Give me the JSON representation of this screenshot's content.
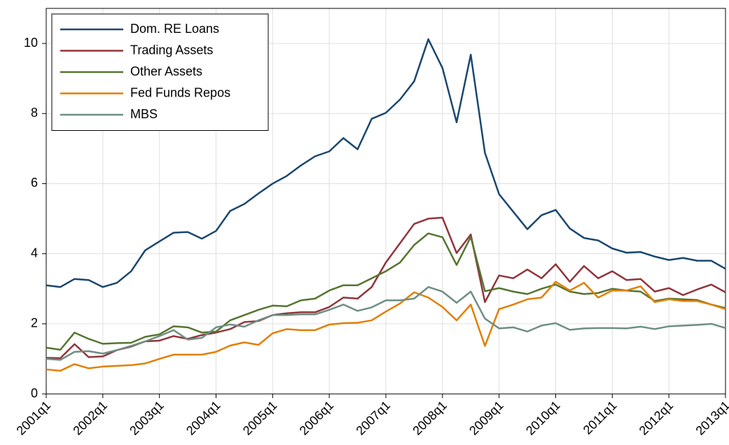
{
  "chart_data": {
    "type": "line",
    "categories": [
      "2001q1",
      null,
      null,
      null,
      "2002q1",
      null,
      null,
      null,
      "2003q1",
      null,
      null,
      null,
      "2004q1",
      null,
      null,
      null,
      "2005q1",
      null,
      null,
      null,
      "2006q1",
      null,
      null,
      null,
      "2007q1",
      null,
      null,
      null,
      "2008q1",
      null,
      null,
      null,
      "2009q1",
      null,
      null,
      null,
      "2010q1",
      null,
      null,
      null,
      "2011q1",
      null,
      null,
      null,
      "2012q1",
      null,
      null,
      null,
      "2013q1"
    ],
    "ylim": [
      0,
      11
    ],
    "yticks": [
      0,
      2,
      4,
      6,
      8,
      10
    ],
    "grid": true,
    "legend": "top-left",
    "series": [
      {
        "name": "Dom. RE Loans",
        "color": "#1a476f",
        "values": [
          3.1,
          3.05,
          3.28,
          3.25,
          3.05,
          3.17,
          3.5,
          4.1,
          4.35,
          4.6,
          4.62,
          4.43,
          4.65,
          5.22,
          5.42,
          5.72,
          6.0,
          6.22,
          6.52,
          6.78,
          6.92,
          7.3,
          6.98,
          7.85,
          8.02,
          8.4,
          8.92,
          10.12,
          9.3,
          7.75,
          9.68,
          6.88,
          5.7,
          5.2,
          4.7,
          5.1,
          5.25,
          4.72,
          4.45,
          4.38,
          4.15,
          4.03,
          4.05,
          3.92,
          3.82,
          3.88,
          3.8,
          3.8,
          3.57
        ]
      },
      {
        "name": "Trading Assets",
        "color": "#90353b",
        "values": [
          1.03,
          1.02,
          1.42,
          1.05,
          1.07,
          1.25,
          1.35,
          1.5,
          1.52,
          1.65,
          1.57,
          1.68,
          1.75,
          1.85,
          2.05,
          2.08,
          2.25,
          2.3,
          2.33,
          2.33,
          2.48,
          2.75,
          2.72,
          3.05,
          3.75,
          4.3,
          4.85,
          5.0,
          5.03,
          4.02,
          4.55,
          2.62,
          3.38,
          3.3,
          3.55,
          3.3,
          3.7,
          3.2,
          3.65,
          3.3,
          3.5,
          3.25,
          3.28,
          2.92,
          3.02,
          2.82,
          2.98,
          3.12,
          2.9
        ]
      },
      {
        "name": "Other Assets",
        "color": "#55752f",
        "values": [
          1.32,
          1.26,
          1.75,
          1.57,
          1.43,
          1.45,
          1.46,
          1.63,
          1.7,
          1.93,
          1.9,
          1.75,
          1.78,
          2.1,
          2.25,
          2.4,
          2.52,
          2.5,
          2.67,
          2.72,
          2.95,
          3.1,
          3.1,
          3.3,
          3.5,
          3.75,
          4.25,
          4.58,
          4.47,
          3.68,
          4.48,
          2.93,
          3.02,
          2.92,
          2.85,
          3.0,
          3.12,
          2.92,
          2.85,
          2.88,
          3.0,
          2.95,
          2.92,
          2.65,
          2.72,
          2.7,
          2.68,
          2.55,
          2.45
        ]
      },
      {
        "name": "Fed Funds Repos",
        "color": "#e37e00",
        "values": [
          0.7,
          0.66,
          0.85,
          0.73,
          0.78,
          0.8,
          0.82,
          0.87,
          1.0,
          1.12,
          1.12,
          1.12,
          1.2,
          1.38,
          1.47,
          1.4,
          1.73,
          1.85,
          1.82,
          1.82,
          1.98,
          2.02,
          2.03,
          2.1,
          2.35,
          2.58,
          2.9,
          2.75,
          2.48,
          2.1,
          2.55,
          1.37,
          2.42,
          2.55,
          2.7,
          2.75,
          3.2,
          2.95,
          3.17,
          2.75,
          2.95,
          2.95,
          3.07,
          2.62,
          2.7,
          2.65,
          2.65,
          2.55,
          2.42
        ]
      },
      {
        "name": "MBS",
        "color": "#6e8e84",
        "values": [
          1.0,
          0.97,
          1.2,
          1.22,
          1.15,
          1.25,
          1.37,
          1.5,
          1.65,
          1.82,
          1.55,
          1.6,
          1.9,
          1.98,
          1.92,
          2.1,
          2.25,
          2.25,
          2.27,
          2.27,
          2.4,
          2.55,
          2.37,
          2.47,
          2.67,
          2.67,
          2.72,
          3.05,
          2.92,
          2.6,
          2.92,
          2.15,
          1.87,
          1.9,
          1.78,
          1.95,
          2.02,
          1.83,
          1.87,
          1.88,
          1.88,
          1.87,
          1.92,
          1.85,
          1.93,
          1.95,
          1.97,
          2.0,
          1.88
        ]
      }
    ]
  }
}
